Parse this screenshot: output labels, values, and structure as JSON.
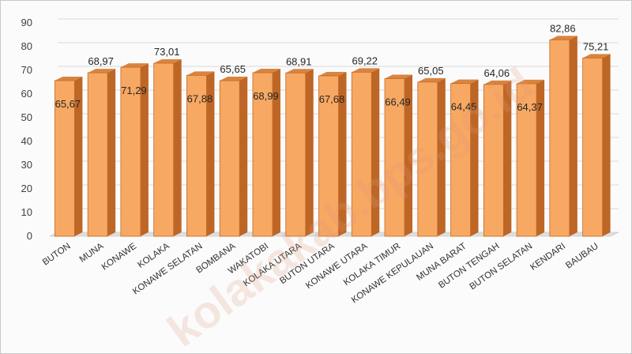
{
  "chart_data": {
    "type": "bar",
    "title": "",
    "xlabel": "",
    "ylabel": "",
    "ylim": [
      0,
      90
    ],
    "yticks": [
      0,
      10,
      20,
      30,
      40,
      50,
      60,
      70,
      80,
      90
    ],
    "grid": true,
    "legend": "none",
    "categories": [
      "BUTON",
      "MUNA",
      "KONAWE",
      "KOLAKA",
      "KONAWE SELATAN",
      "BOMBANA",
      "WAKATOBI",
      "KOLAKA UTARA",
      "BUTON UTARA",
      "KONAWE UTARA",
      "KOLAKA TIMUR",
      "KONAWE KEPULAUAN",
      "MUNA BARAT",
      "BUTON TENGAH",
      "BUTON SELATAN",
      "KENDARI",
      "BAUBAU"
    ],
    "values": [
      65.67,
      68.97,
      71.29,
      73.01,
      67.88,
      65.65,
      68.99,
      68.91,
      67.68,
      69.22,
      66.49,
      65.05,
      64.45,
      64.06,
      64.37,
      82.86,
      75.21
    ],
    "data_labels": [
      "65,67",
      "68,97",
      "71,29",
      "73,01",
      "67,88",
      "65,65",
      "68,99",
      "68,91",
      "67,68",
      "69,22",
      "66,49",
      "65,05",
      "64,45",
      "64,06",
      "64,37",
      "82,86",
      "75,21"
    ],
    "colors": {
      "bar_front": "#f7a862",
      "bar_side": "#bd6626",
      "bar_top": "#d9843f",
      "bar_edge": "#c46a26",
      "floor": "#dedede",
      "grid": "#d9d9d9"
    }
  },
  "watermark": "kolakakab.bps.go.id"
}
